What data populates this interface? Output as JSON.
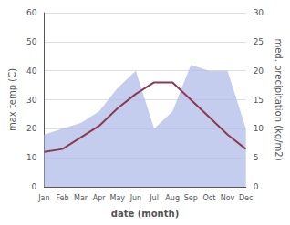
{
  "chart_data": {
    "type": "line",
    "categories": [
      "Jan",
      "Feb",
      "Mar",
      "Apr",
      "May",
      "Jun",
      "Jul",
      "Aug",
      "Sep",
      "Oct",
      "Nov",
      "Dec"
    ],
    "xlabel": "date (month)",
    "ylabel": "max temp (C)",
    "y2label": "med. precipitation (kg/m2)",
    "series": [
      {
        "type": "area",
        "axis": "y2",
        "color": "#b0bce8",
        "values": [
          9.0,
          10.0,
          11.0,
          13.0,
          17.0,
          20.0,
          10.0,
          13.0,
          21.0,
          20.0,
          20.0,
          10.0
        ]
      },
      {
        "type": "line",
        "color": "#8B3A52",
        "values": [
          12,
          13,
          17,
          21,
          27,
          32,
          36,
          36,
          30,
          24,
          18,
          13
        ]
      }
    ],
    "ylim": [
      0,
      60
    ],
    "yticks": [
      0,
      10,
      20,
      30,
      40,
      50,
      60
    ],
    "y2lim": [
      0,
      30
    ],
    "y2ticks": [
      0,
      5,
      10,
      15,
      20,
      25,
      30
    ],
    "grid": true
  }
}
